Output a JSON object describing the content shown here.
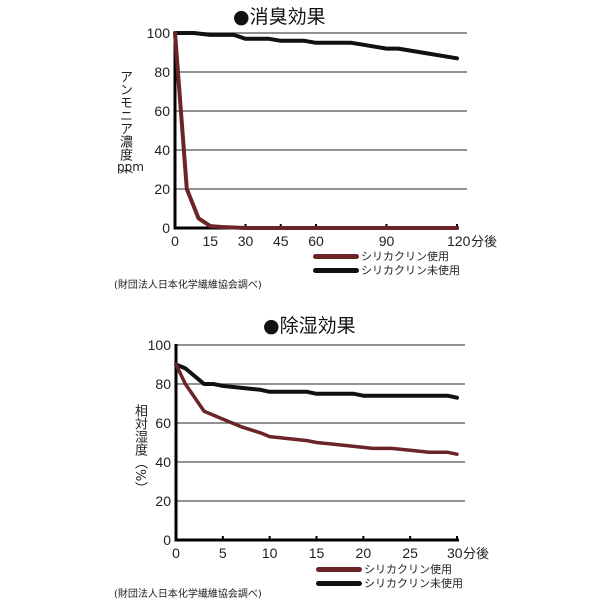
{
  "colors": {
    "treated": "#6b2427",
    "untreated": "#111111",
    "grid": "#6e6e6e",
    "axis": "#000000"
  },
  "chart1": {
    "title": "●消臭効果",
    "ylabel": "アンモニア濃度（ppm）",
    "ylabel_top": "アンモニア濃度（",
    "ylabel_bottom": "ppm",
    "xunit": "分後",
    "source": "(財団法人日本化学繊維協会調べ)",
    "legend": [
      "シリカクリン使用",
      "シリカクリン未使用"
    ],
    "yticks": [
      "100",
      "80",
      "60",
      "40",
      "20",
      "0"
    ],
    "xticks": [
      "0",
      "15",
      "30",
      "45",
      "60",
      "90",
      "120分後"
    ]
  },
  "chart2": {
    "title": "●除湿効果",
    "ylabel": "相対湿度（%）",
    "xunit": "分後",
    "source": "(財団法人日本化学繊維協会調べ)",
    "legend": [
      "シリカクリン使用",
      "シリカクリン未使用"
    ],
    "yticks": [
      "100",
      "80",
      "60",
      "40",
      "20",
      "0"
    ],
    "xticks": [
      "0",
      "5",
      "10",
      "15",
      "20",
      "25",
      "30分後"
    ]
  },
  "chart_data": [
    {
      "type": "line",
      "title": "●消臭効果",
      "xlabel": "分後",
      "ylabel": "アンモニア濃度（ppm）",
      "xlim": [
        0,
        120
      ],
      "ylim": [
        0,
        100
      ],
      "xticks": [
        0,
        15,
        30,
        45,
        60,
        90,
        120
      ],
      "yticks": [
        0,
        20,
        40,
        60,
        80,
        100
      ],
      "grid": "horizontal",
      "legend_position": "below-right",
      "series": [
        {
          "name": "シリカクリン使用",
          "color": "#6b2427",
          "x": [
            0,
            5,
            10,
            15,
            20,
            30,
            45,
            60,
            90,
            120
          ],
          "y": [
            100,
            20,
            5,
            1,
            0.5,
            0,
            0,
            0,
            0,
            0
          ]
        },
        {
          "name": "シリカクリン未使用",
          "color": "#111111",
          "x": [
            0,
            8,
            15,
            25,
            30,
            40,
            45,
            55,
            60,
            75,
            80,
            90,
            95,
            105,
            120
          ],
          "y": [
            100,
            100,
            99,
            99,
            97,
            97,
            96,
            96,
            95,
            95,
            94,
            92,
            92,
            90,
            87
          ]
        }
      ],
      "annotations": [
        "(財団法人日本化学繊維協会調べ)"
      ]
    },
    {
      "type": "line",
      "title": "●除湿効果",
      "xlabel": "分後",
      "ylabel": "相対湿度（%）",
      "xlim": [
        0,
        30
      ],
      "ylim": [
        0,
        100
      ],
      "xticks": [
        0,
        5,
        10,
        15,
        20,
        25,
        30
      ],
      "yticks": [
        0,
        20,
        40,
        60,
        80,
        100
      ],
      "grid": "horizontal",
      "legend_position": "below-right",
      "series": [
        {
          "name": "シリカクリン使用",
          "color": "#6b2427",
          "x": [
            0,
            1,
            3,
            5,
            7,
            9,
            10,
            12,
            14,
            15,
            17,
            19,
            21,
            23,
            25,
            27,
            29,
            30
          ],
          "y": [
            90,
            80,
            66,
            62,
            58,
            55,
            53,
            52,
            51,
            50,
            49,
            48,
            47,
            47,
            46,
            45,
            45,
            44
          ]
        },
        {
          "name": "シリカクリン未使用",
          "color": "#111111",
          "x": [
            0,
            1,
            3,
            4,
            5,
            7,
            9,
            10,
            14,
            15,
            19,
            20,
            25,
            29,
            30
          ],
          "y": [
            90,
            88,
            80,
            80,
            79,
            78,
            77,
            76,
            76,
            75,
            75,
            74,
            74,
            74,
            73
          ]
        }
      ],
      "annotations": [
        "(財団法人日本化学繊維協会調べ)"
      ]
    }
  ]
}
